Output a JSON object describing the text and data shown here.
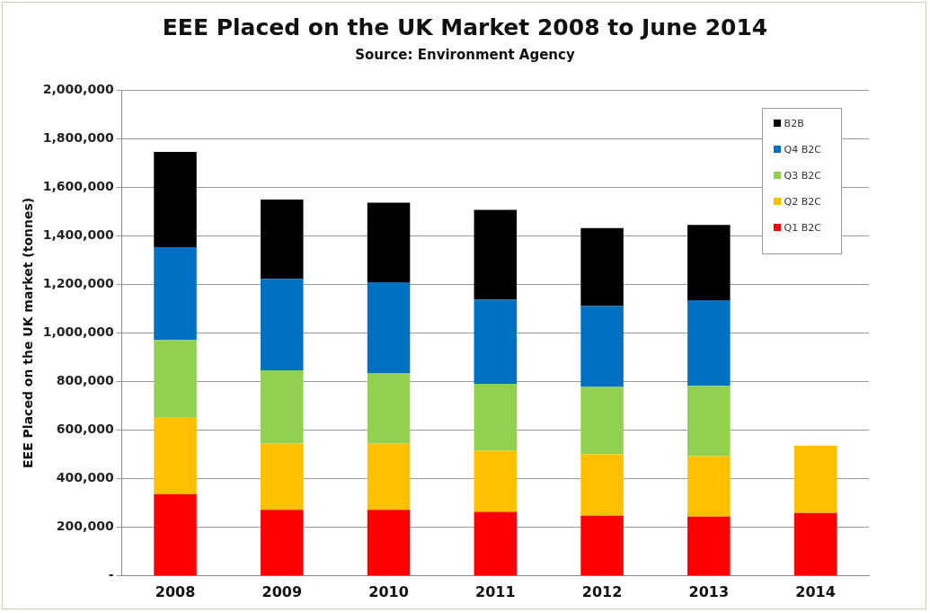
{
  "chart_data": {
    "type": "bar",
    "title": "EEE Placed on the UK Market 2008 to June 2014",
    "subtitle": "Source: Environment Agency",
    "ylabel": "EEE Placed on the UK market (tonnes)",
    "categories": [
      "2008",
      "2009",
      "2010",
      "2011",
      "2012",
      "2013",
      "2014"
    ],
    "stacked": true,
    "series": [
      {
        "name": "Q1 B2C",
        "color": "#ff0000",
        "values": [
          337000,
          272000,
          272000,
          264000,
          248000,
          244000,
          259000
        ]
      },
      {
        "name": "Q2 B2C",
        "color": "#ffc000",
        "values": [
          317000,
          273000,
          273000,
          252000,
          253000,
          249000,
          277000
        ]
      },
      {
        "name": "Q3 B2C",
        "color": "#92d050",
        "values": [
          317000,
          301000,
          288000,
          275000,
          277000,
          289000,
          null
        ]
      },
      {
        "name": "Q4 B2C",
        "color": "#0070c0",
        "values": [
          382000,
          376000,
          376000,
          346000,
          333000,
          353000,
          null
        ]
      },
      {
        "name": "B2B",
        "color": "#000000",
        "values": [
          392000,
          327000,
          327000,
          369000,
          320000,
          309000,
          null
        ]
      }
    ],
    "ylim": [
      0,
      2000000
    ],
    "yticks": [
      {
        "value": 0,
        "label": "-"
      },
      {
        "value": 200000,
        "label": "200,000"
      },
      {
        "value": 400000,
        "label": "400,000"
      },
      {
        "value": 600000,
        "label": "600,000"
      },
      {
        "value": 800000,
        "label": "800,000"
      },
      {
        "value": 1000000,
        "label": "1,000,000"
      },
      {
        "value": 1200000,
        "label": "1,200,000"
      },
      {
        "value": 1400000,
        "label": "1,400,000"
      },
      {
        "value": 1600000,
        "label": "1,600,000"
      },
      {
        "value": 1800000,
        "label": "1,800,000"
      },
      {
        "value": 2000000,
        "label": "2,000,000"
      }
    ],
    "grid": "y",
    "legend": "top right"
  }
}
